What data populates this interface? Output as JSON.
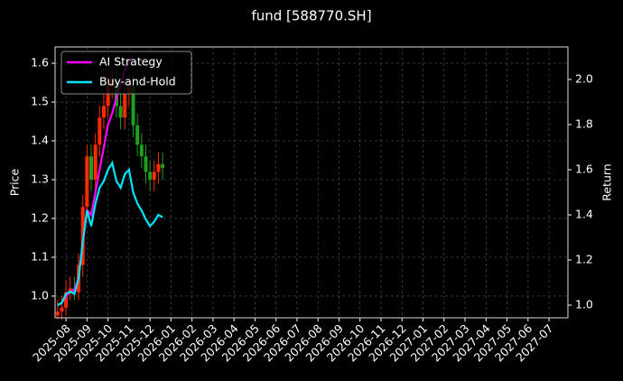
{
  "chart_data": {
    "type": "candlestick",
    "title": "fund [588770.SH]",
    "ylabel": "Price",
    "y2label": "Return",
    "x": [
      -0.4,
      -0.2,
      0,
      0.2,
      0.4,
      0.6,
      0.8,
      1.0,
      1.2,
      1.4,
      1.6,
      1.8,
      2.0,
      2.2,
      2.4,
      2.6,
      2.8,
      3.0,
      3.2,
      3.4,
      3.6,
      3.8,
      4.0,
      4.2,
      4.4,
      4.6
    ],
    "open": [
      0.95,
      0.96,
      0.97,
      1.01,
      1.02,
      1.01,
      1.08,
      1.23,
      1.36,
      1.3,
      1.39,
      1.46,
      1.49,
      1.54,
      1.56,
      1.49,
      1.46,
      1.52,
      1.54,
      1.44,
      1.39,
      1.36,
      1.32,
      1.3,
      1.32,
      1.34
    ],
    "high": [
      0.99,
      1.0,
      1.04,
      1.05,
      1.05,
      1.11,
      1.26,
      1.39,
      1.39,
      1.42,
      1.49,
      1.52,
      1.57,
      1.59,
      1.59,
      1.52,
      1.55,
      1.57,
      1.57,
      1.47,
      1.42,
      1.39,
      1.35,
      1.35,
      1.37,
      1.37
    ],
    "low": [
      0.94,
      0.94,
      0.95,
      0.99,
      0.99,
      0.99,
      1.05,
      1.2,
      1.27,
      1.27,
      1.36,
      1.43,
      1.46,
      1.51,
      1.46,
      1.43,
      1.43,
      1.49,
      1.41,
      1.36,
      1.33,
      1.29,
      1.27,
      1.27,
      1.29,
      1.3
    ],
    "close": [
      0.96,
      0.97,
      1.01,
      1.02,
      1.01,
      1.08,
      1.23,
      1.36,
      1.3,
      1.39,
      1.46,
      1.49,
      1.54,
      1.56,
      1.49,
      1.46,
      1.52,
      1.54,
      1.44,
      1.39,
      1.36,
      1.32,
      1.3,
      1.32,
      1.34,
      1.33
    ],
    "up_color": "#ff2a00",
    "down_color": "#1f9e1f",
    "series": [
      {
        "name": "AI Strategy",
        "color": "#ff00ff",
        "axis": "y2",
        "values": [
          1.0,
          1.01,
          1.04,
          1.06,
          1.07,
          1.12,
          1.28,
          1.42,
          1.4,
          1.5,
          1.6,
          1.7,
          1.8,
          1.85,
          1.92,
          1.98,
          2.04,
          2.08,
          2.1,
          null,
          null,
          null,
          null,
          null,
          null,
          null
        ]
      },
      {
        "name": "Buy-and-Hold",
        "color": "#00e5ff",
        "axis": "y2",
        "values": [
          1.0,
          1.01,
          1.05,
          1.06,
          1.05,
          1.12,
          1.28,
          1.42,
          1.35,
          1.45,
          1.52,
          1.55,
          1.6,
          1.63,
          1.55,
          1.52,
          1.58,
          1.6,
          1.5,
          1.45,
          1.42,
          1.38,
          1.35,
          1.37,
          1.4,
          1.39
        ]
      }
    ],
    "xlim": [
      -0.52,
      23.9
    ],
    "xticks": [
      {
        "value": 0,
        "label": "2025-08"
      },
      {
        "value": 1,
        "label": "2025-09"
      },
      {
        "value": 2,
        "label": "2025-10"
      },
      {
        "value": 3,
        "label": "2025-11"
      },
      {
        "value": 4,
        "label": "2025-12"
      },
      {
        "value": 5,
        "label": "2026-01"
      },
      {
        "value": 6,
        "label": "2026-02"
      },
      {
        "value": 7,
        "label": "2026-03"
      },
      {
        "value": 8,
        "label": "2026-04"
      },
      {
        "value": 9,
        "label": "2026-05"
      },
      {
        "value": 10,
        "label": "2026-06"
      },
      {
        "value": 11,
        "label": "2026-07"
      },
      {
        "value": 12,
        "label": "2026-08"
      },
      {
        "value": 13,
        "label": "2026-09"
      },
      {
        "value": 14,
        "label": "2026-10"
      },
      {
        "value": 15,
        "label": "2026-11"
      },
      {
        "value": 16,
        "label": "2026-12"
      },
      {
        "value": 17,
        "label": "2027-01"
      },
      {
        "value": 18,
        "label": "2027-02"
      },
      {
        "value": 19,
        "label": "2027-03"
      },
      {
        "value": 20,
        "label": "2027-04"
      },
      {
        "value": 21,
        "label": "2027-05"
      },
      {
        "value": 22,
        "label": "2027-06"
      },
      {
        "value": 23,
        "label": "2027-07"
      }
    ],
    "ylim": [
      0.944,
      1.642
    ],
    "yticks": [
      {
        "value": 1,
        "label": "1.0"
      },
      1.1,
      1.2,
      1.3,
      1.4,
      1.5,
      1.6
    ],
    "y2lim": [
      0.944,
      2.144
    ],
    "y2ticks": [
      {
        "value": 1,
        "label": "1.0"
      },
      1.2,
      1.4,
      1.6,
      1.8,
      {
        "value": 2,
        "label": "2.0"
      }
    ],
    "grid": true,
    "legend": "upper left"
  }
}
